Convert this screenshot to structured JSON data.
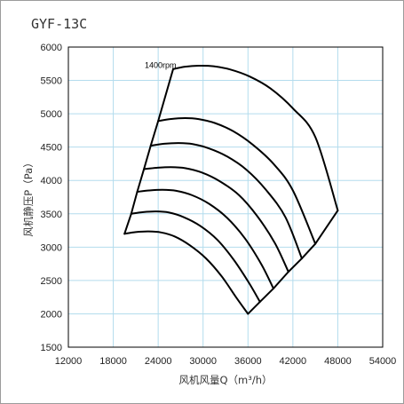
{
  "colors": {
    "grid": "#b3dced",
    "curve": "#000000",
    "frame": "#000000",
    "background": "#ffffff"
  },
  "chart_data": {
    "type": "line",
    "title": "GYF-13C",
    "xlabel": "风机风量Q（m³/h）",
    "ylabel": "风机静压P（Pa）",
    "xlim": [
      12000,
      54000
    ],
    "ylim": [
      1500,
      6000
    ],
    "x_ticks": [
      12000,
      18000,
      24000,
      30000,
      36000,
      42000,
      48000,
      54000
    ],
    "x_tick_labels": [
      "12000",
      "18000",
      "24000",
      "30000",
      "36000",
      "42000",
      "48000",
      "54000"
    ],
    "y_ticks": [
      1500,
      2000,
      2500,
      3000,
      3500,
      4000,
      4500,
      5000,
      5500,
      6000
    ],
    "y_tick_labels": [
      "1500",
      "2000",
      "2500",
      "3000",
      "3500",
      "4000",
      "4500",
      "5000",
      "5500",
      "6000"
    ],
    "grid": true,
    "legend": "none",
    "annotations": [
      {
        "text": "1400rpm",
        "x": 22200,
        "y": 5690
      }
    ],
    "series": [
      {
        "x": [
          26000,
          27600,
          29400,
          31400,
          33600,
          36200,
          39000,
          42000,
          45000,
          48000
        ],
        "y": [
          5670,
          5705,
          5720,
          5712,
          5665,
          5560,
          5380,
          5080,
          4650,
          3550
        ]
      },
      {
        "x": [
          24000,
          25600,
          27600,
          29400,
          31600,
          34000,
          36600,
          39400,
          42000,
          45000
        ],
        "y": [
          4890,
          4920,
          4935,
          4920,
          4860,
          4740,
          4540,
          4250,
          3850,
          3050
        ]
      },
      {
        "x": [
          23000,
          24800,
          26800,
          28600,
          30800,
          33200,
          35800,
          38400,
          41000,
          43200
        ],
        "y": [
          4520,
          4550,
          4560,
          4545,
          4480,
          4360,
          4160,
          3860,
          3450,
          2830
        ]
      },
      {
        "x": [
          22100,
          23800,
          25700,
          27600,
          29800,
          32200,
          34800,
          37200,
          39600,
          41400
        ],
        "y": [
          4170,
          4190,
          4200,
          4185,
          4120,
          3990,
          3780,
          3470,
          3060,
          2630
        ]
      },
      {
        "x": [
          21200,
          22800,
          24600,
          26400,
          28500,
          30800,
          33200,
          35600,
          37800,
          39400
        ],
        "y": [
          3830,
          3850,
          3860,
          3845,
          3780,
          3650,
          3440,
          3130,
          2740,
          2380
        ]
      },
      {
        "x": [
          20400,
          22000,
          23700,
          25400,
          27400,
          29600,
          31900,
          34100,
          36100,
          37600
        ],
        "y": [
          3500,
          3525,
          3535,
          3520,
          3450,
          3320,
          3110,
          2810,
          2470,
          2180
        ]
      },
      {
        "x": [
          19500,
          21000,
          22700,
          24400,
          26200,
          28200,
          30400,
          32500,
          34400,
          36000
        ],
        "y": [
          3200,
          3225,
          3235,
          3220,
          3160,
          3030,
          2830,
          2560,
          2250,
          2000
        ]
      }
    ],
    "envelope": {
      "left_edge": {
        "x": [
          26000,
          24000,
          23000,
          22100,
          21200,
          20400,
          19500
        ],
        "y": [
          5670,
          4890,
          4520,
          4170,
          3830,
          3500,
          3200
        ]
      },
      "right_edge": {
        "x": [
          48000,
          45000,
          43200,
          41400,
          39400,
          37600,
          36000
        ],
        "y": [
          3550,
          3050,
          2830,
          2630,
          2380,
          2180,
          2000
        ]
      }
    }
  }
}
